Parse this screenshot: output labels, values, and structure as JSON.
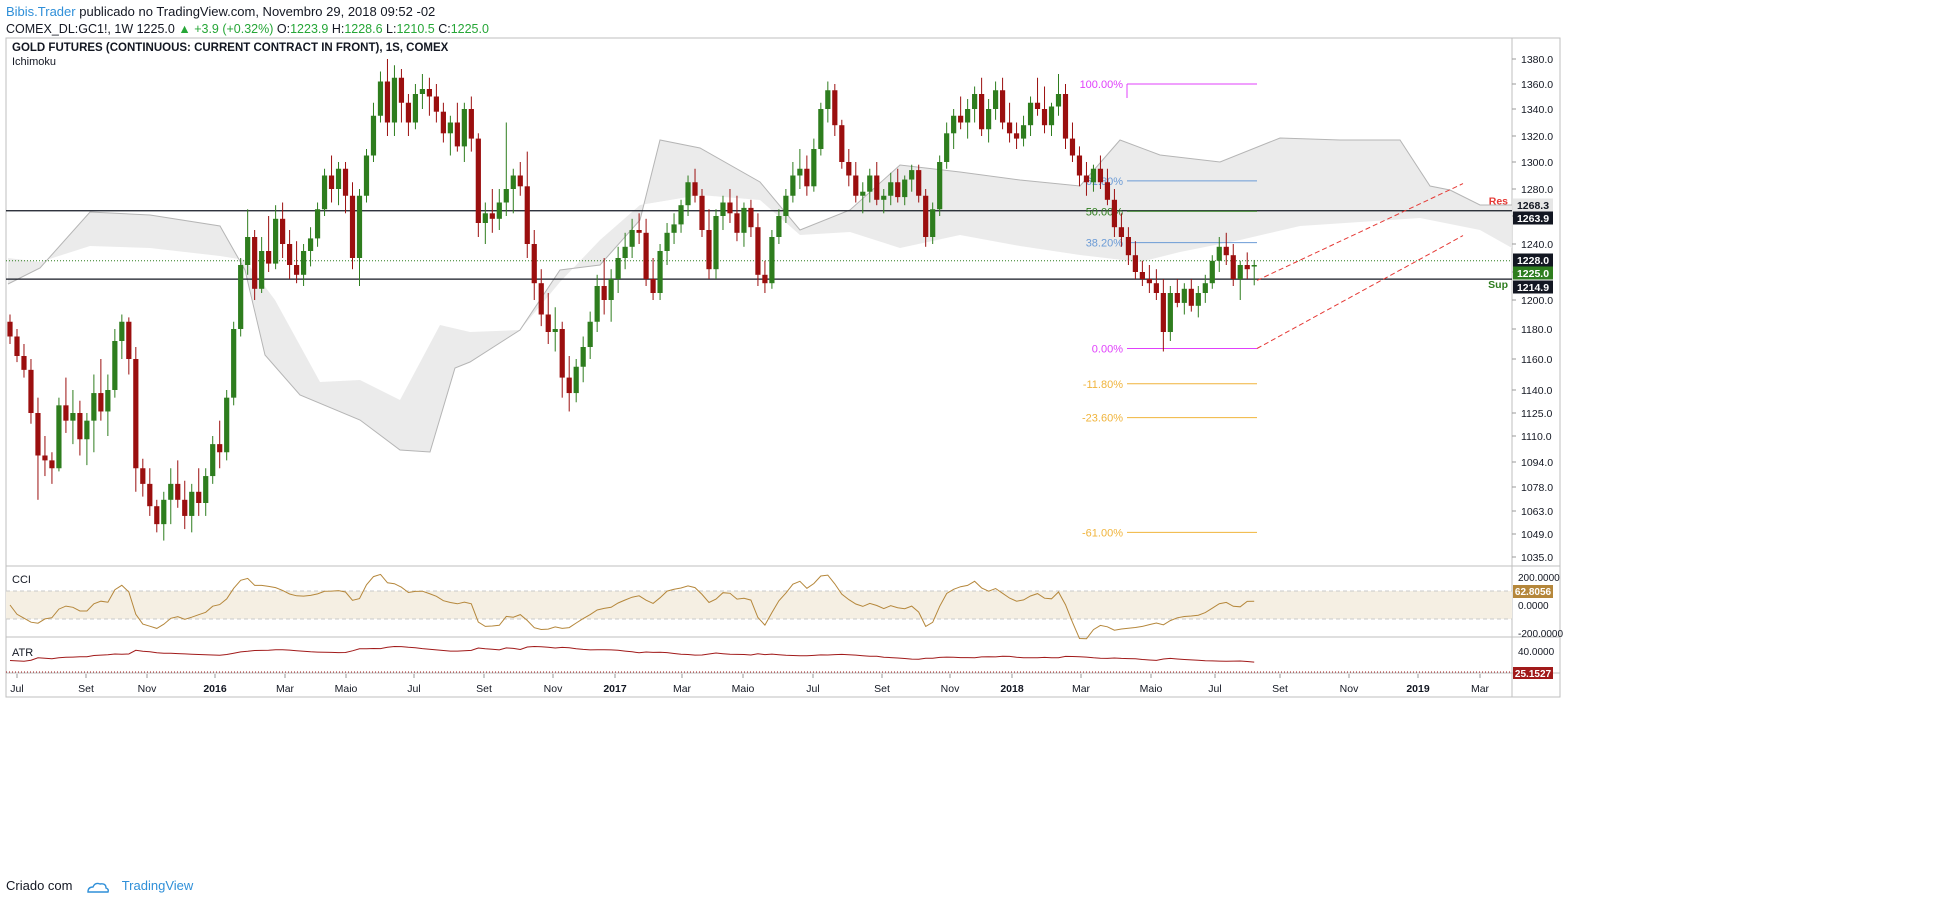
{
  "header": {
    "author": "Bibis.Trader",
    "published": "publicado no TradingView.com, Novembro 29, 2018 09:52 -02",
    "symbol": "COMEX_DL:GC1!, 1W",
    "last": "1225.0",
    "change": "+3.9 (+0.32%)",
    "open_label": "O:",
    "open": "1223.9",
    "high_label": "H:",
    "high": "1228.6",
    "low_label": "L:",
    "low": "1210.5",
    "close_label": "C:",
    "close": "1225.0"
  },
  "footer": {
    "created_with": "Criado com",
    "brand": "TradingView"
  },
  "colors": {
    "up": "#2e7d1e",
    "down": "#9b0f0f",
    "cloud": "#e9e9e9",
    "fib_0_100": "#e040fb",
    "fib_blue": "#6b9bd6",
    "fib_green": "#2e7d1e",
    "fib_orange": "#f0b43c",
    "cci": "#b5873b",
    "atr": "#a11a1a",
    "res": "#e53935",
    "sup": "#2e7d1e"
  },
  "chart_data": [
    {
      "type": "candlestick",
      "title": "GOLD FUTURES (CONTINUOUS: CURRENT CONTRACT IN FRONT), 1S, COMEX",
      "subtitle": "Ichimoku",
      "y_ticks": [
        "1380.0",
        "1360.0",
        "1340.0",
        "1320.0",
        "1300.0",
        "1280.0",
        "1260.0",
        "1240.0",
        "1220.0",
        "1200.0",
        "1180.0",
        "1160.0",
        "1140.0",
        "1125.0",
        "1110.0",
        "1094.0",
        "1078.0",
        "1063.0",
        "1049.0",
        "1035.0"
      ],
      "x_ticks": [
        "Jul",
        "Set",
        "Nov",
        "2016",
        "Mar",
        "Maio",
        "Jul",
        "Set",
        "Nov",
        "2017",
        "Mar",
        "Maio",
        "Jul",
        "Set",
        "Nov",
        "2018",
        "Mar",
        "Maio",
        "Jul",
        "Set",
        "Nov",
        "2019",
        "Mar"
      ],
      "bold_x_ticks": [
        "2016",
        "2017",
        "2018",
        "2019"
      ],
      "price_labels": [
        {
          "text": "1268.3",
          "bg": "#e6e6e6",
          "fg": "#131722",
          "value": 1268.3
        },
        {
          "text": "1263.9",
          "bg": "#131722",
          "fg": "#ffffff",
          "value": 1263.9
        },
        {
          "text": "1228.0",
          "bg": "#131722",
          "fg": "#ffffff",
          "value": 1228.0
        },
        {
          "text": "1225.0",
          "bg": "#2e7d1e",
          "fg": "#ffffff",
          "value": 1225.0
        },
        {
          "text": "1214.9",
          "bg": "#131722",
          "fg": "#ffffff",
          "value": 1214.9
        }
      ],
      "levels": {
        "resistance": {
          "label": "Res",
          "value": 1263.9
        },
        "support": {
          "label": "Sup",
          "value": 1214.9
        }
      },
      "fibonacci": [
        {
          "label": "100.00%",
          "value": 1360.0
        },
        {
          "label": "61.80%",
          "value": 1286.0
        },
        {
          "label": "50.00%",
          "value": 1263.5
        },
        {
          "label": "38.20%",
          "value": 1241.0
        },
        {
          "label": "0.00%",
          "value": 1167.0
        },
        {
          "label": "-11.80%",
          "value": 1144.0
        },
        {
          "label": "-23.60%",
          "value": 1122.0
        },
        {
          "label": "-61.00%",
          "value": 1050.0
        }
      ],
      "channel": {
        "lower": [
          [
            0,
            1167
          ],
          [
            1,
            1246
          ]
        ],
        "upper": [
          [
            0,
            1214
          ],
          [
            1,
            1284
          ]
        ]
      },
      "candles": [
        [
          1185,
          1190,
          1170,
          1175
        ],
        [
          1175,
          1180,
          1158,
          1162
        ],
        [
          1162,
          1170,
          1148,
          1153
        ],
        [
          1153,
          1160,
          1118,
          1125
        ],
        [
          1125,
          1135,
          1070,
          1098
        ],
        [
          1098,
          1110,
          1085,
          1095
        ],
        [
          1095,
          1100,
          1080,
          1090
        ],
        [
          1090,
          1135,
          1088,
          1130
        ],
        [
          1130,
          1148,
          1112,
          1120
        ],
        [
          1120,
          1140,
          1105,
          1125
        ],
        [
          1125,
          1133,
          1098,
          1108
        ],
        [
          1108,
          1125,
          1092,
          1120
        ],
        [
          1120,
          1150,
          1100,
          1138
        ],
        [
          1138,
          1160,
          1120,
          1126
        ],
        [
          1126,
          1150,
          1110,
          1140
        ],
        [
          1140,
          1180,
          1135,
          1172
        ],
        [
          1172,
          1190,
          1160,
          1185
        ],
        [
          1185,
          1188,
          1150,
          1160
        ],
        [
          1160,
          1168,
          1075,
          1090
        ],
        [
          1090,
          1096,
          1072,
          1080
        ],
        [
          1080,
          1090,
          1060,
          1066
        ],
        [
          1066,
          1070,
          1050,
          1055
        ],
        [
          1055,
          1075,
          1045,
          1070
        ],
        [
          1070,
          1090,
          1055,
          1080
        ],
        [
          1080,
          1095,
          1065,
          1070
        ],
        [
          1070,
          1082,
          1052,
          1060
        ],
        [
          1060,
          1080,
          1050,
          1075
        ],
        [
          1075,
          1090,
          1060,
          1068
        ],
        [
          1068,
          1090,
          1060,
          1085
        ],
        [
          1085,
          1110,
          1080,
          1105
        ],
        [
          1105,
          1120,
          1090,
          1100
        ],
        [
          1100,
          1140,
          1095,
          1135
        ],
        [
          1135,
          1185,
          1130,
          1180
        ],
        [
          1180,
          1230,
          1175,
          1225
        ],
        [
          1225,
          1265,
          1218,
          1245
        ],
        [
          1245,
          1250,
          1200,
          1208
        ],
        [
          1208,
          1245,
          1205,
          1235
        ],
        [
          1235,
          1260,
          1220,
          1226
        ],
        [
          1226,
          1268,
          1222,
          1258
        ],
        [
          1258,
          1270,
          1230,
          1240
        ],
        [
          1240,
          1250,
          1215,
          1225
        ],
        [
          1225,
          1242,
          1212,
          1218
        ],
        [
          1218,
          1240,
          1210,
          1235
        ],
        [
          1235,
          1252,
          1224,
          1244
        ],
        [
          1244,
          1270,
          1238,
          1265
        ],
        [
          1265,
          1295,
          1260,
          1290
        ],
        [
          1290,
          1305,
          1270,
          1280
        ],
        [
          1280,
          1300,
          1268,
          1295
        ],
        [
          1295,
          1300,
          1262,
          1275
        ],
        [
          1275,
          1285,
          1222,
          1230
        ],
        [
          1230,
          1280,
          1210,
          1275
        ],
        [
          1275,
          1310,
          1270,
          1305
        ],
        [
          1305,
          1345,
          1300,
          1335
        ],
        [
          1335,
          1370,
          1330,
          1362
        ],
        [
          1362,
          1380,
          1320,
          1330
        ],
        [
          1330,
          1375,
          1320,
          1365
        ],
        [
          1365,
          1372,
          1330,
          1345
        ],
        [
          1345,
          1352,
          1320,
          1330
        ],
        [
          1330,
          1360,
          1325,
          1352
        ],
        [
          1352,
          1368,
          1340,
          1356
        ],
        [
          1356,
          1365,
          1335,
          1350
        ],
        [
          1350,
          1360,
          1330,
          1338
        ],
        [
          1338,
          1345,
          1315,
          1322
        ],
        [
          1322,
          1335,
          1305,
          1330
        ],
        [
          1330,
          1345,
          1308,
          1312
        ],
        [
          1312,
          1345,
          1300,
          1340
        ],
        [
          1340,
          1350,
          1308,
          1318
        ],
        [
          1318,
          1322,
          1245,
          1255
        ],
        [
          1255,
          1270,
          1240,
          1262
        ],
        [
          1262,
          1280,
          1248,
          1258
        ],
        [
          1258,
          1280,
          1250,
          1270
        ],
        [
          1270,
          1330,
          1260,
          1280
        ],
        [
          1280,
          1295,
          1262,
          1290
        ],
        [
          1290,
          1300,
          1275,
          1282
        ],
        [
          1282,
          1308,
          1230,
          1240
        ],
        [
          1240,
          1250,
          1200,
          1212
        ],
        [
          1212,
          1222,
          1182,
          1190
        ],
        [
          1190,
          1205,
          1170,
          1178
        ],
        [
          1178,
          1195,
          1165,
          1180
        ],
        [
          1180,
          1185,
          1135,
          1148
        ],
        [
          1148,
          1162,
          1126,
          1138
        ],
        [
          1138,
          1160,
          1132,
          1155
        ],
        [
          1155,
          1175,
          1145,
          1168
        ],
        [
          1168,
          1192,
          1160,
          1185
        ],
        [
          1185,
          1218,
          1178,
          1210
        ],
        [
          1210,
          1230,
          1190,
          1200
        ],
        [
          1200,
          1222,
          1185,
          1215
        ],
        [
          1215,
          1238,
          1205,
          1230
        ],
        [
          1230,
          1248,
          1222,
          1238
        ],
        [
          1238,
          1258,
          1230,
          1250
        ],
        [
          1250,
          1262,
          1240,
          1248
        ],
        [
          1248,
          1258,
          1210,
          1215
        ],
        [
          1215,
          1230,
          1200,
          1205
        ],
        [
          1205,
          1240,
          1200,
          1235
        ],
        [
          1235,
          1255,
          1225,
          1248
        ],
        [
          1248,
          1262,
          1240,
          1254
        ],
        [
          1254,
          1272,
          1248,
          1268
        ],
        [
          1268,
          1290,
          1260,
          1285
        ],
        [
          1285,
          1295,
          1270,
          1275
        ],
        [
          1275,
          1280,
          1245,
          1250
        ],
        [
          1250,
          1265,
          1215,
          1222
        ],
        [
          1222,
          1265,
          1215,
          1260
        ],
        [
          1260,
          1275,
          1250,
          1270
        ],
        [
          1270,
          1280,
          1255,
          1262
        ],
        [
          1262,
          1275,
          1242,
          1248
        ],
        [
          1248,
          1270,
          1238,
          1266
        ],
        [
          1266,
          1272,
          1245,
          1252
        ],
        [
          1252,
          1262,
          1210,
          1218
        ],
        [
          1218,
          1228,
          1205,
          1212
        ],
        [
          1212,
          1250,
          1208,
          1245
        ],
        [
          1245,
          1265,
          1240,
          1260
        ],
        [
          1260,
          1280,
          1255,
          1275
        ],
        [
          1275,
          1300,
          1270,
          1290
        ],
        [
          1290,
          1310,
          1280,
          1295
        ],
        [
          1295,
          1305,
          1275,
          1282
        ],
        [
          1282,
          1318,
          1278,
          1310
        ],
        [
          1310,
          1345,
          1305,
          1340
        ],
        [
          1340,
          1362,
          1330,
          1355
        ],
        [
          1355,
          1360,
          1320,
          1328
        ],
        [
          1328,
          1332,
          1295,
          1300
        ],
        [
          1300,
          1310,
          1282,
          1290
        ],
        [
          1290,
          1300,
          1270,
          1275
        ],
        [
          1275,
          1285,
          1262,
          1278
        ],
        [
          1278,
          1295,
          1270,
          1290
        ],
        [
          1290,
          1300,
          1268,
          1272
        ],
        [
          1272,
          1280,
          1262,
          1275
        ],
        [
          1275,
          1292,
          1268,
          1285
        ],
        [
          1285,
          1295,
          1270,
          1274
        ],
        [
          1274,
          1290,
          1268,
          1287
        ],
        [
          1287,
          1298,
          1278,
          1294
        ],
        [
          1294,
          1298,
          1270,
          1275
        ],
        [
          1275,
          1280,
          1238,
          1245
        ],
        [
          1245,
          1270,
          1240,
          1265
        ],
        [
          1265,
          1305,
          1260,
          1300
        ],
        [
          1300,
          1330,
          1295,
          1322
        ],
        [
          1322,
          1340,
          1310,
          1335
        ],
        [
          1335,
          1350,
          1325,
          1330
        ],
        [
          1330,
          1348,
          1318,
          1340
        ],
        [
          1340,
          1358,
          1330,
          1352
        ],
        [
          1352,
          1365,
          1320,
          1325
        ],
        [
          1325,
          1348,
          1315,
          1340
        ],
        [
          1340,
          1362,
          1332,
          1355
        ],
        [
          1355,
          1365,
          1325,
          1330
        ],
        [
          1330,
          1345,
          1315,
          1322
        ],
        [
          1322,
          1330,
          1310,
          1318
        ],
        [
          1318,
          1335,
          1312,
          1328
        ],
        [
          1328,
          1350,
          1320,
          1345
        ],
        [
          1345,
          1365,
          1335,
          1340
        ],
        [
          1340,
          1358,
          1322,
          1328
        ],
        [
          1328,
          1345,
          1320,
          1342
        ],
        [
          1342,
          1368,
          1335,
          1352
        ],
        [
          1352,
          1360,
          1310,
          1318
        ],
        [
          1318,
          1330,
          1300,
          1305
        ],
        [
          1305,
          1312,
          1282,
          1290
        ],
        [
          1290,
          1300,
          1275,
          1285
        ],
        [
          1285,
          1298,
          1278,
          1295
        ],
        [
          1295,
          1305,
          1280,
          1285
        ],
        [
          1285,
          1295,
          1268,
          1272
        ],
        [
          1272,
          1280,
          1245,
          1252
        ],
        [
          1252,
          1262,
          1238,
          1245
        ],
        [
          1245,
          1252,
          1225,
          1232
        ],
        [
          1232,
          1242,
          1215,
          1220
        ],
        [
          1220,
          1228,
          1210,
          1215
        ],
        [
          1215,
          1225,
          1205,
          1212
        ],
        [
          1212,
          1222,
          1200,
          1205
        ],
        [
          1205,
          1215,
          1165,
          1178
        ],
        [
          1178,
          1210,
          1172,
          1205
        ],
        [
          1205,
          1215,
          1195,
          1198
        ],
        [
          1198,
          1212,
          1190,
          1208
        ],
        [
          1208,
          1215,
          1192,
          1196
        ],
        [
          1196,
          1210,
          1188,
          1205
        ],
        [
          1205,
          1218,
          1198,
          1212
        ],
        [
          1212,
          1232,
          1208,
          1228
        ],
        [
          1228,
          1245,
          1220,
          1238
        ],
        [
          1238,
          1248,
          1225,
          1232
        ],
        [
          1232,
          1240,
          1210,
          1215
        ],
        [
          1215,
          1228,
          1200,
          1225
        ],
        [
          1225,
          1234,
          1215,
          1222
        ],
        [
          1223.9,
          1228.6,
          1210.5,
          1225.0
        ]
      ]
    },
    {
      "type": "line",
      "title": "CCI",
      "y_ticks": [
        "200.0000",
        "0.0000",
        "-200.0000"
      ],
      "last_label": "62.8056",
      "bands": [
        100,
        -100
      ]
    },
    {
      "type": "line",
      "title": "ATR",
      "y_ticks": [
        "40.0000"
      ],
      "last_label": "25.1527"
    }
  ]
}
